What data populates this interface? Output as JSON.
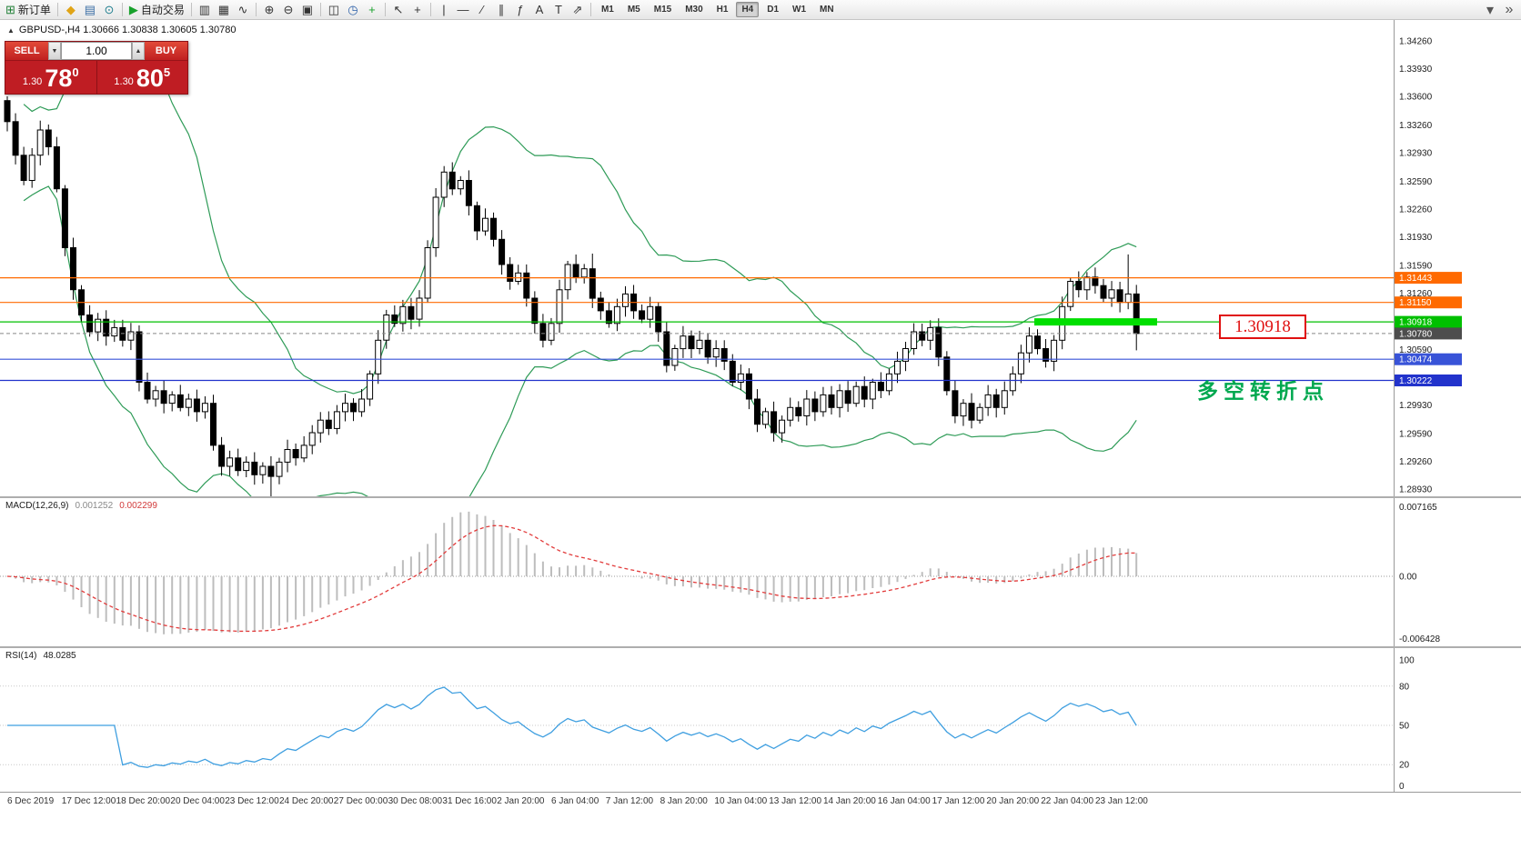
{
  "toolbar": {
    "items": [
      {
        "name": "new-order-button",
        "glyph": "⊞",
        "color": "#1e7e34",
        "label": "新订单"
      },
      {
        "name": "separator"
      },
      {
        "name": "marketwatch-button",
        "glyph": "◆",
        "color": "#e0a416"
      },
      {
        "name": "print-button",
        "glyph": "▤",
        "color": "#3a6ea5"
      },
      {
        "name": "webterminal-button",
        "glyph": "⊙",
        "color": "#1f7f8f"
      },
      {
        "name": "separator"
      },
      {
        "name": "autotrading-button",
        "glyph": "▶",
        "color": "#18a12c",
        "label": "自动交易"
      },
      {
        "name": "separator"
      },
      {
        "name": "bar-chart-button",
        "glyph": "▥",
        "color": "#333333"
      },
      {
        "name": "candlestick-chart-button",
        "glyph": "▦",
        "color": "#333333"
      },
      {
        "name": "line-chart-button",
        "glyph": "∿",
        "color": "#333333"
      },
      {
        "name": "separator"
      },
      {
        "name": "zoom-in-button",
        "glyph": "⊕",
        "color": "#333333"
      },
      {
        "name": "zoom-out-button",
        "glyph": "⊖",
        "color": "#333333"
      },
      {
        "name": "tile-windows-button",
        "glyph": "▣",
        "color": "#333333"
      },
      {
        "name": "separator"
      },
      {
        "name": "arrange-windows-button",
        "glyph": "◫",
        "color": "#333333"
      },
      {
        "name": "period-button",
        "glyph": "◷",
        "color": "#2a5fa8"
      },
      {
        "name": "indicators-button",
        "glyph": "+",
        "color": "#18a12c"
      },
      {
        "name": "separator"
      },
      {
        "name": "cursor-button",
        "glyph": "↖",
        "color": "#333333"
      },
      {
        "name": "crosshair-button",
        "glyph": "+",
        "color": "#333333"
      },
      {
        "name": "separator"
      },
      {
        "name": "vertical-line-button",
        "glyph": "|",
        "color": "#333333"
      },
      {
        "name": "horizontal-line-button",
        "glyph": "—",
        "color": "#333333"
      },
      {
        "name": "trendline-button",
        "glyph": "∕",
        "color": "#333333"
      },
      {
        "name": "channel-button",
        "glyph": "∥",
        "color": "#333333"
      },
      {
        "name": "fibonacci-button",
        "glyph": "ƒ",
        "color": "#333333"
      },
      {
        "name": "text-button",
        "glyph": "A",
        "color": "#333333"
      },
      {
        "name": "label-button",
        "glyph": "T",
        "color": "#333333"
      },
      {
        "name": "arrow-tool-button",
        "glyph": "⇗",
        "color": "#333333"
      },
      {
        "name": "separator"
      }
    ],
    "timeframes": [
      "M1",
      "M5",
      "M15",
      "M30",
      "H1",
      "H4",
      "D1",
      "W1",
      "MN"
    ],
    "active_timeframe": "H4",
    "overflow_glyph": "»",
    "options_glyph": "▾"
  },
  "chart": {
    "marker": "▲",
    "header": "GBPUSD-,H4  1.30666 1.30838 1.30605 1.30780"
  },
  "one_click": {
    "sell_label": "SELL",
    "buy_label": "BUY",
    "volume": "1.00",
    "spin_down": "▼",
    "spin_up": "▲",
    "sell_price": {
      "head": "1.30",
      "big": "78",
      "sup": "0"
    },
    "buy_price": {
      "head": "1.30",
      "big": "80",
      "sup": "5"
    }
  },
  "annotations": {
    "price_callout": "1.30918",
    "turning_point": "多空转折点"
  },
  "chart_data": {
    "type": "candlestick",
    "symbol": "GBPUSD",
    "timeframe": "H4",
    "price_axis": {
      "min": 1.2893,
      "max": 1.3426,
      "ticks": [
        "1.34260",
        "1.33930",
        "1.33600",
        "1.33260",
        "1.32930",
        "1.32590",
        "1.32260",
        "1.31930",
        "1.31590",
        "1.31260",
        "1.30590",
        "1.29930",
        "1.29590",
        "1.29260",
        "1.28930"
      ]
    },
    "time_labels": [
      "6 Dec 2019",
      "17 Dec 12:00",
      "18 Dec 20:00",
      "20 Dec 04:00",
      "23 Dec 12:00",
      "24 Dec 20:00",
      "27 Dec 00:00",
      "30 Dec 08:00",
      "31 Dec 16:00",
      "2 Jan 20:00",
      "6 Jan 04:00",
      "7 Jan 12:00",
      "8 Jan 20:00",
      "10 Jan 04:00",
      "13 Jan 12:00",
      "14 Jan 20:00",
      "16 Jan 04:00",
      "17 Jan 12:00",
      "20 Jan 20:00",
      "22 Jan 04:00",
      "23 Jan 12:00"
    ],
    "open_first": 1.3355,
    "closes": [
      1.333,
      1.329,
      1.326,
      1.329,
      1.332,
      1.33,
      1.325,
      1.318,
      1.313,
      1.31,
      1.308,
      1.3095,
      1.3075,
      1.3085,
      1.307,
      1.308,
      1.302,
      1.3,
      1.301,
      1.2995,
      1.3005,
      1.299,
      1.3,
      1.2985,
      1.2995,
      1.2945,
      1.292,
      1.293,
      1.2915,
      1.2925,
      1.291,
      1.292,
      1.2908,
      1.2925,
      1.294,
      1.293,
      1.2945,
      1.296,
      1.2975,
      1.2965,
      1.2985,
      1.2995,
      1.2985,
      1.3,
      1.303,
      1.307,
      1.31,
      1.309,
      1.311,
      1.3095,
      1.312,
      1.318,
      1.324,
      1.327,
      1.325,
      1.326,
      1.323,
      1.32,
      1.3215,
      1.319,
      1.316,
      1.314,
      1.315,
      1.312,
      1.309,
      1.307,
      1.309,
      1.313,
      1.316,
      1.3145,
      1.3155,
      1.312,
      1.3105,
      1.309,
      1.311,
      1.3125,
      1.3105,
      1.3095,
      1.311,
      1.308,
      1.304,
      1.306,
      1.3075,
      1.306,
      1.307,
      1.305,
      1.306,
      1.3045,
      1.302,
      1.303,
      1.3,
      1.297,
      1.2985,
      1.296,
      1.2975,
      1.299,
      1.298,
      1.3,
      1.2985,
      1.3005,
      1.299,
      1.301,
      1.2995,
      1.3015,
      1.3,
      1.302,
      1.301,
      1.303,
      1.3045,
      1.306,
      1.308,
      1.307,
      1.3085,
      1.305,
      1.301,
      1.298,
      1.2995,
      1.2975,
      1.299,
      1.3005,
      1.299,
      1.301,
      1.303,
      1.3055,
      1.3075,
      1.306,
      1.3045,
      1.307,
      1.311,
      1.314,
      1.313,
      1.3145,
      1.3135,
      1.312,
      1.313,
      1.3115,
      1.3125,
      1.3078
    ],
    "wick_overrides": {
      "0": {
        "high": 1.336
      },
      "32": {
        "low": 1.2883
      },
      "71": {
        "high": 1.3173
      },
      "136": {
        "high": 1.3172
      },
      "137": {
        "low": 1.3058
      }
    },
    "current_price": 1.3078,
    "current_price_label": "1.30780",
    "hlines": [
      {
        "price": 1.31443,
        "label": "1.31443",
        "color": "#ff6a00"
      },
      {
        "price": 1.3115,
        "label": "1.31150",
        "color": "#ff6a00"
      },
      {
        "price": 1.30918,
        "label": "1.30918",
        "color": "#00c000"
      },
      {
        "price": 1.30474,
        "label": "1.30474",
        "color": "#3853d8"
      },
      {
        "price": 1.30222,
        "label": "1.30222",
        "color": "#2233cc"
      }
    ],
    "thick_segment": {
      "price": 1.30918,
      "x_start_frac": 0.742,
      "x_end_frac": 0.83,
      "color": "#00df00"
    },
    "colors": {
      "bull": "#ffffff",
      "bear": "#000000",
      "outline": "#000000",
      "bollinger": "#2e9b57",
      "macd_hist": "#bdbdbd",
      "macd_signal": "#e23b3b",
      "rsi_line": "#3f9fe0",
      "axis_text": "#1a1a1a",
      "current_tag": "#4d4d4d"
    },
    "indicators": {
      "bollinger": {
        "period": 20,
        "deviation": 2
      },
      "macd": {
        "label": "MACD(12,26,9)",
        "value_main": "0.001252",
        "value_signal": "0.002299",
        "axis": [
          "0.007165",
          "0.00",
          "-0.006428"
        ],
        "axis_max": 0.007165,
        "axis_min": -0.006428
      },
      "rsi": {
        "label": "RSI(14)",
        "value": "48.0285",
        "levels": [
          80,
          50,
          20
        ],
        "axis": [
          "100",
          "80",
          "50",
          "20",
          "0"
        ]
      }
    }
  }
}
